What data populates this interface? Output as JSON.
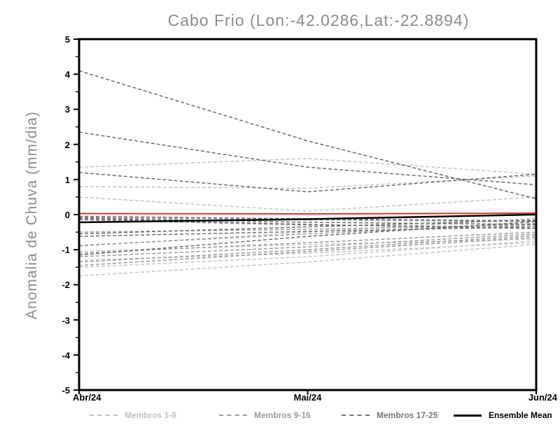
{
  "chart": {
    "title": "Cabo Frio (Lon:-42.0286,Lat:-22.8894)",
    "ylabel": "Anomalia de Chuva (mm/dia)",
    "x_categories": [
      "Abr/24",
      "Mai/24",
      "Jun/24"
    ],
    "y_tick_labels": [
      "5",
      "4",
      "3",
      "2",
      "1",
      "0",
      "-1",
      "-2",
      "-3",
      "-4",
      "-5"
    ]
  },
  "chart_data": {
    "type": "line",
    "title": "Cabo Frio (Lon:-42.0286,Lat:-22.8894)",
    "xlabel": "",
    "ylabel": "Anomalia de Chuva (mm/dia)",
    "x_categories": [
      "Abr/24",
      "Mai/24",
      "Jun/24"
    ],
    "ylim": [
      -5,
      5
    ],
    "y_major_step": 1,
    "y_minor_step": 0.5,
    "grid": false,
    "legend_position": "bottom",
    "frame_color": "#000000",
    "groups": [
      {
        "name": "Membros 1-8",
        "color": "#c6c6c6",
        "style": "dashed",
        "members": [
          {
            "values": [
              1.35,
              1.6,
              1.15
            ]
          },
          {
            "values": [
              0.8,
              0.75,
              1.1
            ]
          },
          {
            "values": [
              0.5,
              0.1,
              0.5
            ]
          },
          {
            "values": [
              -0.9,
              -0.5,
              -0.1
            ]
          },
          {
            "values": [
              -1.05,
              -0.85,
              -0.7
            ]
          },
          {
            "values": [
              -1.3,
              -1.1,
              -0.8
            ]
          },
          {
            "values": [
              -1.5,
              -1.2,
              -0.75
            ]
          },
          {
            "values": [
              -1.75,
              -1.35,
              -0.85
            ]
          }
        ]
      },
      {
        "name": "Membros 9-16",
        "color": "#9b9b9b",
        "style": "dashed",
        "members": [
          {
            "values": [
              -0.08,
              -0.15,
              -0.2
            ]
          },
          {
            "values": [
              -0.15,
              -0.3,
              -0.35
            ]
          },
          {
            "values": [
              -0.5,
              -0.42,
              -0.3
            ]
          },
          {
            "values": [
              -0.88,
              -0.55,
              -0.25
            ]
          },
          {
            "values": [
              -1.1,
              -0.8,
              -0.5
            ]
          },
          {
            "values": [
              -1.2,
              -0.92,
              -0.55
            ]
          },
          {
            "values": [
              -1.35,
              -1.0,
              -0.6
            ]
          },
          {
            "values": [
              -1.45,
              -1.05,
              -0.65
            ]
          }
        ]
      },
      {
        "name": "Membros 17-25",
        "color": "#6e6e6e",
        "style": "dashed",
        "members": [
          {
            "values": [
              4.1,
              2.1,
              0.45
            ]
          },
          {
            "values": [
              2.35,
              1.35,
              0.85
            ]
          },
          {
            "values": [
              1.2,
              0.65,
              1.15
            ]
          },
          {
            "values": [
              -0.05,
              -0.12,
              -0.18
            ]
          },
          {
            "values": [
              -0.1,
              -0.22,
              -0.28
            ]
          },
          {
            "values": [
              -0.12,
              -0.28,
              -0.4
            ]
          },
          {
            "values": [
              -0.55,
              -0.35,
              -0.15
            ]
          },
          {
            "values": [
              -0.62,
              -0.48,
              -0.35
            ]
          },
          {
            "values": [
              -1.15,
              -0.62,
              -0.2
            ]
          }
        ]
      }
    ],
    "red_line": {
      "color": "#e03028",
      "style": "solid",
      "values": [
        0.03,
        0.02,
        0.04
      ]
    },
    "ensemble_mean": {
      "name": "Ensemble Mean",
      "color": "#000000",
      "style": "solid",
      "values": [
        -0.22,
        -0.13,
        0.0
      ]
    }
  },
  "legend": {
    "items": [
      {
        "label": "Membros 1-8",
        "color": "#c2c2c2",
        "style": "dashed",
        "x": 128
      },
      {
        "label": "Membros 9-16",
        "color": "#9b9b9b",
        "style": "dashed",
        "x": 313
      },
      {
        "label": "Membros 17-25",
        "color": "#777777",
        "style": "dashed",
        "x": 488
      },
      {
        "label": "Ensemble Mean",
        "color": "#000000",
        "style": "solid",
        "x": 648
      }
    ]
  }
}
